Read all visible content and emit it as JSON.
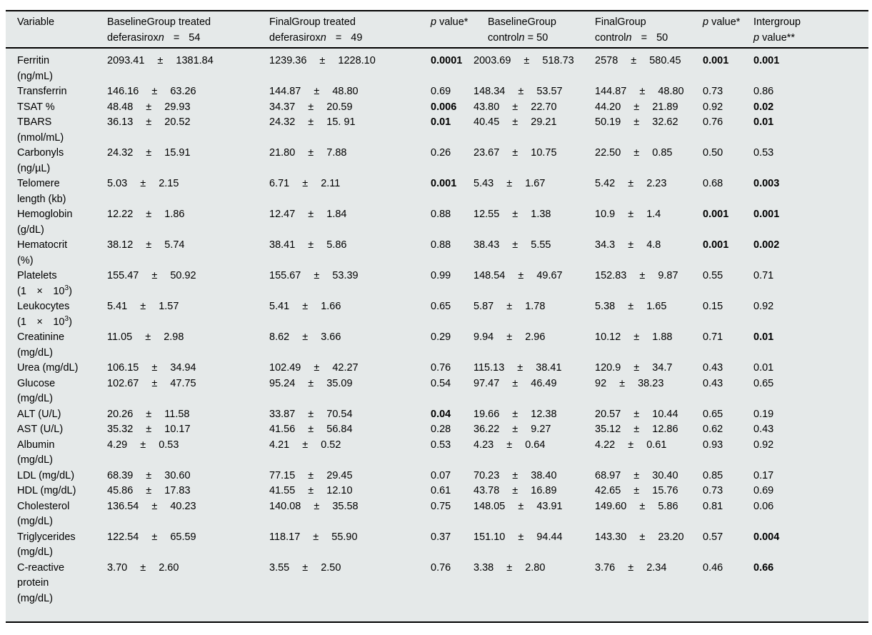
{
  "page": {
    "table_background": "#e5e9e9",
    "rule_color": "#000000",
    "text_color": "#000000"
  },
  "table": {
    "header": {
      "variable": "Variable",
      "treated_baseline": {
        "line1": "BaselineGroup treated",
        "pre": "deferasirox",
        "n_label": "n",
        "eq": "=",
        "n_value": "54"
      },
      "treated_final": {
        "line1": "FinalGroup treated",
        "pre": "deferasirox",
        "n_label": "n",
        "eq": "=",
        "n_value": "49"
      },
      "p_treated": {
        "p": "p",
        "rest": " value*"
      },
      "control_baseline": {
        "line1": "BaselineGroup",
        "pre": "control",
        "n_label": "n",
        "eq": "=",
        "n_value": "50"
      },
      "control_final": {
        "line1": "FinalGroup",
        "pre": "control",
        "n_label": "n",
        "eq": "=",
        "n_value": "50"
      },
      "p_control": {
        "p": "p",
        "rest": " value*"
      },
      "p_intergroup": {
        "line1": "Intergroup",
        "p": "p",
        "rest": " value**"
      }
    },
    "plus_minus": "±",
    "rows": [
      {
        "label_lines": [
          "Ferritin",
          "(ng/mL)"
        ],
        "treated_baseline": {
          "mean": "2093.41",
          "sd": "1381.84"
        },
        "treated_final": {
          "mean": "1239.36",
          "sd": "1228.10"
        },
        "p_treated": {
          "v": "0.0001",
          "bold": true
        },
        "control_baseline": {
          "mean": "2003.69",
          "sd": "518.73"
        },
        "control_final": {
          "mean": "2578",
          "sd": "580.45"
        },
        "p_control": {
          "v": "0.001",
          "bold": true
        },
        "p_intergroup": {
          "v": "0.001",
          "bold": true
        }
      },
      {
        "label_lines": [
          "Transferrin"
        ],
        "treated_baseline": {
          "mean": "146.16",
          "sd": "63.26"
        },
        "treated_final": {
          "mean": "144.87",
          "sd": "48.80"
        },
        "p_treated": {
          "v": "0.69",
          "bold": false
        },
        "control_baseline": {
          "mean": "148.34",
          "sd": "53.57"
        },
        "control_final": {
          "mean": "144.87",
          "sd": "48.80"
        },
        "p_control": {
          "v": "0.73",
          "bold": false
        },
        "p_intergroup": {
          "v": "0.86",
          "bold": false
        }
      },
      {
        "label_lines": [
          "TSAT %"
        ],
        "treated_baseline": {
          "mean": "48.48",
          "sd": "29.93"
        },
        "treated_final": {
          "mean": "34.37",
          "sd": "20.59"
        },
        "p_treated": {
          "v": "0.006",
          "bold": true
        },
        "control_baseline": {
          "mean": "43.80",
          "sd": "22.70"
        },
        "control_final": {
          "mean": "44.20",
          "sd": "21.89"
        },
        "p_control": {
          "v": "0.92",
          "bold": false
        },
        "p_intergroup": {
          "v": "0.02",
          "bold": true
        }
      },
      {
        "label_lines": [
          "TBARS",
          "(nmol/mL)"
        ],
        "treated_baseline": {
          "mean": "36.13",
          "sd": "20.52"
        },
        "treated_final": {
          "mean": "24.32",
          "sd": "15. 91"
        },
        "p_treated": {
          "v": "0.01",
          "bold": true
        },
        "control_baseline": {
          "mean": "40.45",
          "sd": "29.21"
        },
        "control_final": {
          "mean": "50.19",
          "sd": "32.62"
        },
        "p_control": {
          "v": "0.76",
          "bold": false
        },
        "p_intergroup": {
          "v": "0.01",
          "bold": true
        }
      },
      {
        "label_lines": [
          "Carbonyls",
          "(ng/µL)"
        ],
        "treated_baseline": {
          "mean": "24.32",
          "sd": "15.91"
        },
        "treated_final": {
          "mean": "21.80",
          "sd": "7.88"
        },
        "p_treated": {
          "v": "0.26",
          "bold": false
        },
        "control_baseline": {
          "mean": "23.67",
          "sd": "10.75"
        },
        "control_final": {
          "mean": "22.50",
          "sd": "0.85"
        },
        "p_control": {
          "v": "0.50",
          "bold": false
        },
        "p_intergroup": {
          "v": "0.53",
          "bold": false
        }
      },
      {
        "label_lines": [
          "Telomere",
          "length (kb)"
        ],
        "treated_baseline": {
          "mean": "5.03",
          "sd": "2.15"
        },
        "treated_final": {
          "mean": "6.71",
          "sd": "2.11"
        },
        "p_treated": {
          "v": "0.001",
          "bold": true
        },
        "control_baseline": {
          "mean": "5.43",
          "sd": "1.67"
        },
        "control_final": {
          "mean": "5.42",
          "sd": "2.23"
        },
        "p_control": {
          "v": "0.68",
          "bold": false
        },
        "p_intergroup": {
          "v": "0.003",
          "bold": true
        }
      },
      {
        "label_lines": [
          "Hemoglobin",
          "(g/dL)"
        ],
        "treated_baseline": {
          "mean": "12.22",
          "sd": "1.86"
        },
        "treated_final": {
          "mean": "12.47",
          "sd": "1.84"
        },
        "p_treated": {
          "v": "0.88",
          "bold": false
        },
        "control_baseline": {
          "mean": "12.55",
          "sd": "1.38"
        },
        "control_final": {
          "mean": "10.9",
          "sd": "1.4"
        },
        "p_control": {
          "v": "0.001",
          "bold": true
        },
        "p_intergroup": {
          "v": "0.001",
          "bold": true
        }
      },
      {
        "label_lines": [
          "Hematocrit",
          "(%)"
        ],
        "treated_baseline": {
          "mean": "38.12",
          "sd": "5.74"
        },
        "treated_final": {
          "mean": "38.41",
          "sd": "5.86"
        },
        "p_treated": {
          "v": "0.88",
          "bold": false
        },
        "control_baseline": {
          "mean": "38.43",
          "sd": "5.55"
        },
        "control_final": {
          "mean": "34.3",
          "sd": "4.8"
        },
        "p_control": {
          "v": "0.001",
          "bold": true
        },
        "p_intergroup": {
          "v": "0.002",
          "bold": true
        }
      },
      {
        "label_lines": [
          "Platelets",
          "(1 × 10^3)"
        ],
        "treated_baseline": {
          "mean": "155.47",
          "sd": "50.92"
        },
        "treated_final": {
          "mean": "155.67",
          "sd": "53.39"
        },
        "p_treated": {
          "v": "0.99",
          "bold": false
        },
        "control_baseline": {
          "mean": "148.54",
          "sd": "49.67"
        },
        "control_final": {
          "mean": "152.83",
          "sd": "9.87"
        },
        "p_control": {
          "v": "0.55",
          "bold": false
        },
        "p_intergroup": {
          "v": "0.71",
          "bold": false
        }
      },
      {
        "label_lines": [
          "Leukocytes",
          "(1 × 10^3)"
        ],
        "treated_baseline": {
          "mean": "5.41",
          "sd": "1.57"
        },
        "treated_final": {
          "mean": "5.41",
          "sd": "1.66"
        },
        "p_treated": {
          "v": "0.65",
          "bold": false
        },
        "control_baseline": {
          "mean": "5.87",
          "sd": "1.78"
        },
        "control_final": {
          "mean": "5.38",
          "sd": "1.65"
        },
        "p_control": {
          "v": "0.15",
          "bold": false
        },
        "p_intergroup": {
          "v": "0.92",
          "bold": false
        }
      },
      {
        "label_lines": [
          "Creatinine",
          "(mg/dL)"
        ],
        "treated_baseline": {
          "mean": "11.05",
          "sd": "2.98"
        },
        "treated_final": {
          "mean": "8.62",
          "sd": "3.66"
        },
        "p_treated": {
          "v": "0.29",
          "bold": false
        },
        "control_baseline": {
          "mean": "9.94",
          "sd": "2.96"
        },
        "control_final": {
          "mean": "10.12",
          "sd": "1.88"
        },
        "p_control": {
          "v": "0.71",
          "bold": false
        },
        "p_intergroup": {
          "v": "0.01",
          "bold": true
        }
      },
      {
        "label_lines": [
          "Urea (mg/dL)"
        ],
        "treated_baseline": {
          "mean": "106.15",
          "sd": "34.94"
        },
        "treated_final": {
          "mean": "102.49",
          "sd": "42.27"
        },
        "p_treated": {
          "v": "0.76",
          "bold": false
        },
        "control_baseline": {
          "mean": "115.13",
          "sd": "38.41"
        },
        "control_final": {
          "mean": "120.9",
          "sd": "34.7"
        },
        "p_control": {
          "v": "0.43",
          "bold": false
        },
        "p_intergroup": {
          "v": "0.01",
          "bold": false
        }
      },
      {
        "label_lines": [
          "Glucose",
          "(mg/dL)"
        ],
        "treated_baseline": {
          "mean": "102.67",
          "sd": "47.75"
        },
        "treated_final": {
          "mean": "95.24",
          "sd": "35.09"
        },
        "p_treated": {
          "v": "0.54",
          "bold": false
        },
        "control_baseline": {
          "mean": "97.47",
          "sd": "46.49"
        },
        "control_final": {
          "mean": "92",
          "sd": "38.23"
        },
        "p_control": {
          "v": "0.43",
          "bold": false
        },
        "p_intergroup": {
          "v": "0.65",
          "bold": false
        }
      },
      {
        "label_lines": [
          "ALT (U/L)"
        ],
        "treated_baseline": {
          "mean": "20.26",
          "sd": "11.58"
        },
        "treated_final": {
          "mean": "33.87",
          "sd": "70.54"
        },
        "p_treated": {
          "v": "0.04",
          "bold": true
        },
        "control_baseline": {
          "mean": "19.66",
          "sd": "12.38"
        },
        "control_final": {
          "mean": "20.57",
          "sd": "10.44"
        },
        "p_control": {
          "v": "0.65",
          "bold": false
        },
        "p_intergroup": {
          "v": "0.19",
          "bold": false
        }
      },
      {
        "label_lines": [
          "AST (U/L)"
        ],
        "treated_baseline": {
          "mean": "35.32",
          "sd": "10.17"
        },
        "treated_final": {
          "mean": "41.56",
          "sd": "56.84"
        },
        "p_treated": {
          "v": "0.28",
          "bold": false
        },
        "control_baseline": {
          "mean": "36.22",
          "sd": "9.27"
        },
        "control_final": {
          "mean": "35.12",
          "sd": "12.86"
        },
        "p_control": {
          "v": "0.62",
          "bold": false
        },
        "p_intergroup": {
          "v": "0.43",
          "bold": false
        }
      },
      {
        "label_lines": [
          "Albumin",
          "(mg/dL)"
        ],
        "treated_baseline": {
          "mean": "4.29",
          "sd": "0.53"
        },
        "treated_final": {
          "mean": "4.21",
          "sd": "0.52"
        },
        "p_treated": {
          "v": "0.53",
          "bold": false
        },
        "control_baseline": {
          "mean": "4.23",
          "sd": "0.64"
        },
        "control_final": {
          "mean": "4.22",
          "sd": "0.61"
        },
        "p_control": {
          "v": "0.93",
          "bold": false
        },
        "p_intergroup": {
          "v": "0.92",
          "bold": false
        }
      },
      {
        "label_lines": [
          "LDL (mg/dL)"
        ],
        "treated_baseline": {
          "mean": "68.39",
          "sd": "30.60"
        },
        "treated_final": {
          "mean": "77.15",
          "sd": "29.45"
        },
        "p_treated": {
          "v": "0.07",
          "bold": false
        },
        "control_baseline": {
          "mean": "70.23",
          "sd": "38.40"
        },
        "control_final": {
          "mean": "68.97",
          "sd": "30.40"
        },
        "p_control": {
          "v": "0.85",
          "bold": false
        },
        "p_intergroup": {
          "v": "0.17",
          "bold": false
        }
      },
      {
        "label_lines": [
          "HDL (mg/dL)"
        ],
        "treated_baseline": {
          "mean": "45.86",
          "sd": "17.83"
        },
        "treated_final": {
          "mean": "41.55",
          "sd": "12.10"
        },
        "p_treated": {
          "v": "0.61",
          "bold": false
        },
        "control_baseline": {
          "mean": "43.78",
          "sd": "16.89"
        },
        "control_final": {
          "mean": "42.65",
          "sd": "15.76"
        },
        "p_control": {
          "v": "0.73",
          "bold": false
        },
        "p_intergroup": {
          "v": "0.69",
          "bold": false
        }
      },
      {
        "label_lines": [
          "Cholesterol",
          "(mg/dL)"
        ],
        "treated_baseline": {
          "mean": "136.54",
          "sd": "40.23"
        },
        "treated_final": {
          "mean": "140.08",
          "sd": "35.58"
        },
        "p_treated": {
          "v": "0.75",
          "bold": false
        },
        "control_baseline": {
          "mean": "148.05",
          "sd": "43.91"
        },
        "control_final": {
          "mean": "149.60",
          "sd": "5.86"
        },
        "p_control": {
          "v": "0.81",
          "bold": false
        },
        "p_intergroup": {
          "v": "0.06",
          "bold": false
        }
      },
      {
        "label_lines": [
          "Triglycerides",
          "(mg/dL)"
        ],
        "treated_baseline": {
          "mean": "122.54",
          "sd": "65.59"
        },
        "treated_final": {
          "mean": "118.17",
          "sd": "55.90"
        },
        "p_treated": {
          "v": "0.37",
          "bold": false
        },
        "control_baseline": {
          "mean": "151.10",
          "sd": "94.44"
        },
        "control_final": {
          "mean": "143.30",
          "sd": "23.20"
        },
        "p_control": {
          "v": "0.57",
          "bold": false
        },
        "p_intergroup": {
          "v": "0.004",
          "bold": true
        }
      },
      {
        "label_lines": [
          "C-reactive",
          "protein",
          "(mg/dL)"
        ],
        "treated_baseline": {
          "mean": "3.70",
          "sd": "2.60"
        },
        "treated_final": {
          "mean": "3.55",
          "sd": "2.50"
        },
        "p_treated": {
          "v": "0.76",
          "bold": false
        },
        "control_baseline": {
          "mean": "3.38",
          "sd": "2.80"
        },
        "control_final": {
          "mean": "3.76",
          "sd": "2.34"
        },
        "p_control": {
          "v": "0.46",
          "bold": false
        },
        "p_intergroup": {
          "v": "0.66",
          "bold": true
        }
      }
    ]
  }
}
